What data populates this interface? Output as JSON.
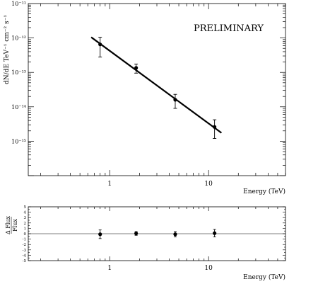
{
  "chart_data": [
    {
      "type": "scatter",
      "xlabel": "Energy (TeV)",
      "ylabel": "dN/dE TeV⁻¹ cm⁻² s⁻¹",
      "annotation": "PRELIMINARY",
      "x_scale": "log",
      "y_scale": "log",
      "xlim": [
        0.15,
        60
      ],
      "ylim": [
        1e-16,
        1e-11
      ],
      "x_ticks": [
        {
          "value": 1,
          "label": "1"
        },
        {
          "value": 10,
          "label": "10"
        }
      ],
      "y_ticks": [
        {
          "value": 1e-15,
          "label": "10⁻¹⁵"
        },
        {
          "value": 1e-14,
          "label": "10⁻¹⁴"
        },
        {
          "value": 1e-13,
          "label": "10⁻¹³"
        },
        {
          "value": 1e-12,
          "label": "10⁻¹²"
        },
        {
          "value": 1e-11,
          "label": "10⁻¹¹"
        }
      ],
      "points": [
        {
          "x": 0.8,
          "y": 6.5e-13,
          "y_low": 2.8e-13,
          "y_high": 1.05e-12
        },
        {
          "x": 1.85,
          "y": 1.35e-13,
          "y_low": 9.5e-14,
          "y_high": 1.75e-13
        },
        {
          "x": 4.6,
          "y": 1.6e-14,
          "y_low": 9e-15,
          "y_high": 2.3e-14
        },
        {
          "x": 11.5,
          "y": 2.6e-15,
          "y_low": 1.2e-15,
          "y_high": 4.2e-15
        }
      ],
      "fit_line": {
        "x": [
          0.65,
          13.5
        ],
        "y": [
          1.05e-12,
          1.75e-15
        ]
      }
    },
    {
      "type": "scatter",
      "xlabel": "Energy (TeV)",
      "ylabel_numerator": "Δ Flux",
      "ylabel_denominator": "Flux",
      "x_scale": "log",
      "xlim": [
        0.15,
        60
      ],
      "ylim": [
        -5,
        5
      ],
      "x_ticks": [
        {
          "value": 1,
          "label": "1"
        },
        {
          "value": 10,
          "label": "10"
        }
      ],
      "y_ticks": [
        {
          "value": 5,
          "label": "5"
        },
        {
          "value": 4,
          "label": "4"
        },
        {
          "value": 3,
          "label": "3"
        },
        {
          "value": 2,
          "label": "2"
        },
        {
          "value": 1,
          "label": "1"
        },
        {
          "value": 0,
          "label": "0"
        },
        {
          "value": -1,
          "label": "-1"
        },
        {
          "value": -2,
          "label": "-2"
        },
        {
          "value": -3,
          "label": "-3"
        },
        {
          "value": -4,
          "label": "-4"
        },
        {
          "value": -5,
          "label": "-5"
        }
      ],
      "reference_line": 0,
      "points": [
        {
          "x": 0.8,
          "y": -0.1,
          "y_low": -0.9,
          "y_high": 0.7
        },
        {
          "x": 1.85,
          "y": 0.05,
          "y_low": -0.3,
          "y_high": 0.4
        },
        {
          "x": 4.6,
          "y": -0.1,
          "y_low": -0.6,
          "y_high": 0.4
        },
        {
          "x": 11.5,
          "y": 0.1,
          "y_low": -0.6,
          "y_high": 0.8
        }
      ]
    }
  ]
}
